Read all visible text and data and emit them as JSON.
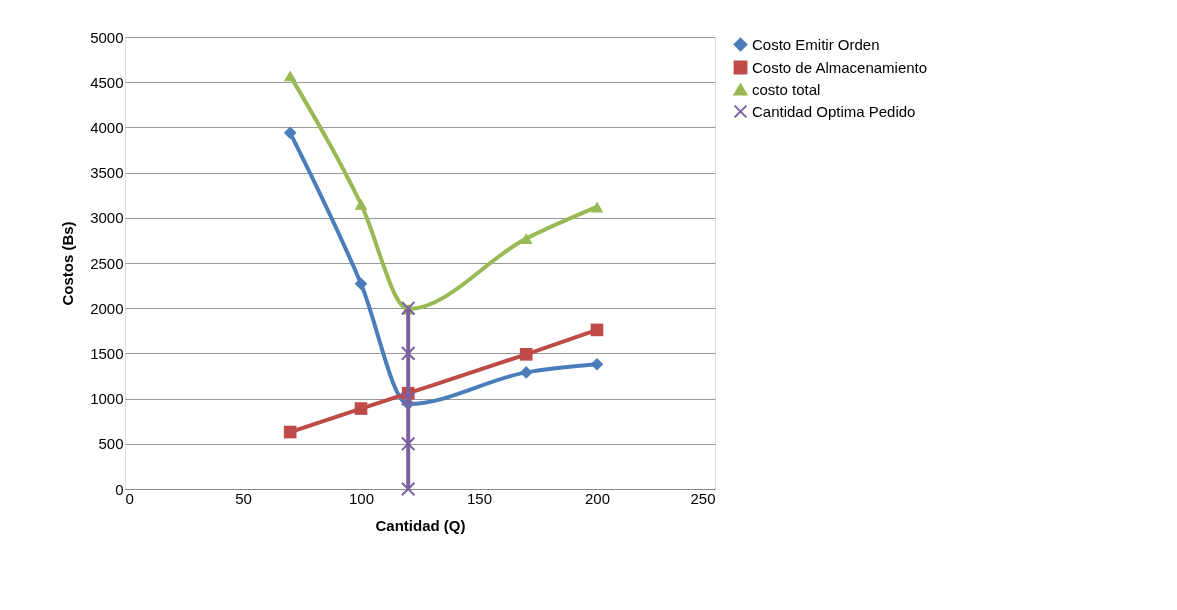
{
  "chart_data": {
    "type": "line",
    "xlabel": "Cantidad (Q)",
    "ylabel": "Costos  (Bs)",
    "xlim": [
      0,
      250
    ],
    "xticks": [
      0,
      50,
      100,
      150,
      200,
      250
    ],
    "ylim": [
      0,
      5000
    ],
    "yticks": [
      0,
      500,
      1000,
      1500,
      2000,
      2500,
      3000,
      3500,
      4000,
      4500,
      5000
    ],
    "grid": "y",
    "legend": "right",
    "line_style": "solid",
    "series": [
      {
        "name": "Costo Emitir Orden",
        "color": "#4a7ebb",
        "marker": "diamond",
        "x": [
          70,
          100,
          120,
          170,
          200
        ],
        "values": [
          3940,
          2270,
          940,
          1290,
          1380
        ]
      },
      {
        "name": "Costo de Almacenamiento",
        "color": "#be4b48",
        "marker": "square",
        "x": [
          70,
          100,
          120,
          170,
          200
        ],
        "values": [
          630,
          890,
          1060,
          1490,
          1760
        ]
      },
      {
        "name": "costo total",
        "color": "#98b954",
        "marker": "triangle",
        "x": [
          70,
          100,
          120,
          170,
          200
        ],
        "values": [
          4570,
          3150,
          1990,
          2770,
          3120
        ]
      },
      {
        "name": "Cantidad Optima Pedido",
        "color": "#7d60a0",
        "marker": "cross",
        "x": [
          120,
          120,
          120,
          120,
          120
        ],
        "values": [
          0,
          500,
          1000,
          1500,
          2000
        ]
      }
    ]
  }
}
